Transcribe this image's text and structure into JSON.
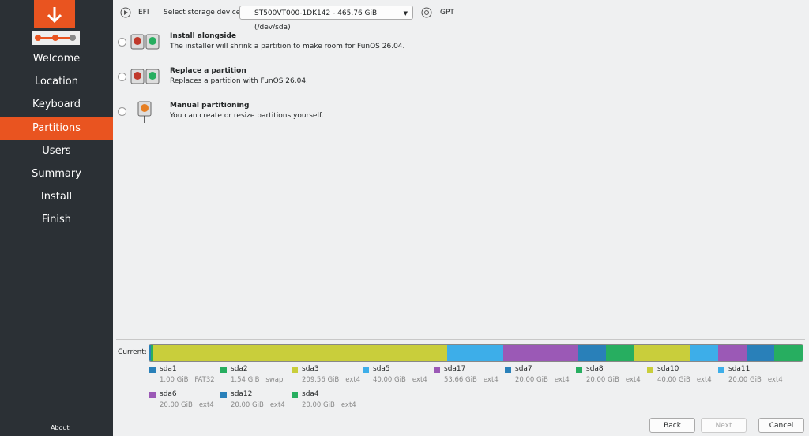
{
  "sidebar": {
    "steps": [
      "Welcome",
      "Location",
      "Keyboard",
      "Partitions",
      "Users",
      "Summary",
      "Install",
      "Finish"
    ],
    "about": "About"
  },
  "top": {
    "boot": "EFI",
    "device_label": "Select storage device:",
    "device": "ST500VT000-1DK142 - 465.76 GiB (/dev/sda)",
    "table": "GPT"
  },
  "options": [
    {
      "title": "Install alongside",
      "description": "The installer will shrink a partition to make room for FunOS 26.04."
    },
    {
      "title": "Replace a partition",
      "description": "Replaces a partition with FunOS 26.04."
    },
    {
      "title": "Manual partitioning",
      "description": "You can create or resize partitions yourself."
    }
  ],
  "partitions": {
    "label": "Current:",
    "items": [
      {
        "name": "sda1",
        "size": "1.00 GiB",
        "filesystem": "FAT32",
        "color": "#2980b9"
      },
      {
        "name": "sda2",
        "size": "1.54 GiB",
        "filesystem": "swap",
        "color": "#27ae60"
      },
      {
        "name": "sda3",
        "size": "209.56 GiB",
        "filesystem": "ext4",
        "color": "#c9ce3b"
      },
      {
        "name": "sda5",
        "size": "40.00 GiB",
        "filesystem": "ext4",
        "color": "#3daee9"
      },
      {
        "name": "sda17",
        "size": "53.66 GiB",
        "filesystem": "ext4",
        "color": "#9b59b6"
      },
      {
        "name": "sda7",
        "size": "20.00 GiB",
        "filesystem": "ext4",
        "color": "#2980b9"
      },
      {
        "name": "sda8",
        "size": "20.00 GiB",
        "filesystem": "ext4",
        "color": "#27ae60"
      },
      {
        "name": "sda10",
        "size": "40.00 GiB",
        "filesystem": "ext4",
        "color": "#c9ce3b"
      },
      {
        "name": "sda11",
        "size": "20.00 GiB",
        "filesystem": "ext4",
        "color": "#3daee9"
      },
      {
        "name": "sda6",
        "size": "20.00 GiB",
        "filesystem": "ext4",
        "color": "#9b59b6"
      },
      {
        "name": "sda12",
        "size": "20.00 GiB",
        "filesystem": "ext4",
        "color": "#2980b9"
      },
      {
        "name": "sda4",
        "size": "20.00 GiB",
        "filesystem": "ext4",
        "color": "#27ae60"
      }
    ]
  },
  "buttons": {
    "back": "Back",
    "next": "Next",
    "cancel": "Cancel"
  }
}
